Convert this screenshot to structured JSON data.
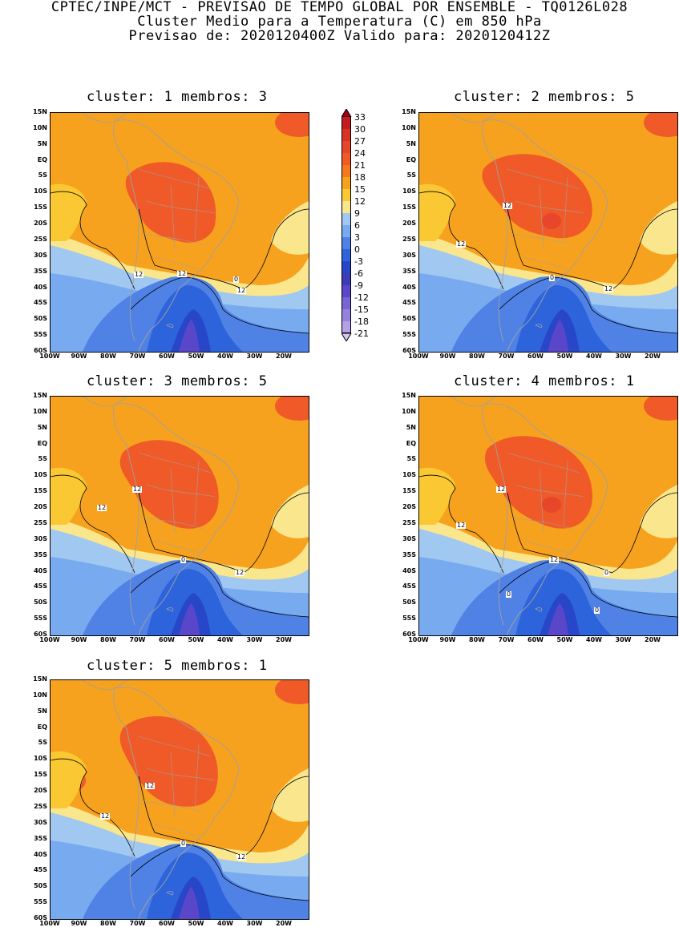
{
  "header": {
    "line1": "CPTEC/INPE/MCT - PREVISAO DE TEMPO GLOBAL POR ENSEMBLE - TQ0126L028",
    "line2": "Cluster Medio para a Temperatura (C) em 850 hPa",
    "line3": "Previsao de: 2020120400Z   Valido para: 2020120412Z"
  },
  "axes": {
    "lat_labels": [
      "15N",
      "10N",
      "5N",
      "EQ",
      "5S",
      "10S",
      "15S",
      "20S",
      "25S",
      "30S",
      "35S",
      "40S",
      "45S",
      "50S",
      "55S",
      "60S"
    ],
    "lon_labels": [
      "100W",
      "90W",
      "80W",
      "70W",
      "60W",
      "50W",
      "40W",
      "30W",
      "20W"
    ]
  },
  "colorbar": {
    "labels": [
      "33",
      "30",
      "27",
      "24",
      "21",
      "18",
      "15",
      "12",
      "9",
      "6",
      "3",
      "0",
      "-3",
      "-6",
      "-9",
      "-12",
      "-15",
      "-18",
      "-21"
    ],
    "colors": {
      "c_gt33": "#a00014",
      "c_30": "#c01e1e",
      "c_27": "#d83224",
      "c_24": "#e8462a",
      "c_21": "#f05a28",
      "c_18": "#f5781e",
      "c_15": "#f7a21e",
      "c_12": "#fac832",
      "c_9": "#fae68c",
      "c_6": "#a0c8f0",
      "c_3": "#78aaf0",
      "c_0": "#5082e6",
      "c_m3": "#2d64dc",
      "c_m6": "#2846c8",
      "c_m9": "#3c3cb4",
      "c_m12": "#5a46c8",
      "c_m15": "#7864d2",
      "c_m18": "#9682dc",
      "c_m21": "#b4a0e6",
      "c_lt21": "#d2c8f0"
    },
    "map_colors": {
      "ocean_warm": "#f7a21e",
      "hot": "#f05a28",
      "very_hot": "#e8462a",
      "mild": "#fac832",
      "cool": "#fae68c",
      "cold1": "#a0c8f0",
      "cold2": "#78aaf0",
      "cold3": "#5082e6",
      "cold4": "#2d64dc",
      "cold5": "#2846c8",
      "cold6": "#5a46c8",
      "border": "#a0a0a0",
      "contour": "#000000"
    }
  },
  "panels": [
    {
      "title": "cluster: 1   membros: 3",
      "contour_labels": [
        "12",
        "12",
        "0",
        "12"
      ]
    },
    {
      "title": "cluster: 2   membros: 5",
      "contour_labels": [
        "12",
        "12",
        "0",
        "12"
      ]
    },
    {
      "title": "cluster: 3   membros: 5",
      "contour_labels": [
        "12",
        "12",
        "0",
        "12"
      ]
    },
    {
      "title": "cluster: 4   membros: 1",
      "contour_labels": [
        "12",
        "12",
        "0",
        "12",
        "0",
        "0"
      ]
    },
    {
      "title": "cluster: 5   membros: 1",
      "contour_labels": [
        "12",
        "12",
        "0",
        "12"
      ]
    }
  ]
}
